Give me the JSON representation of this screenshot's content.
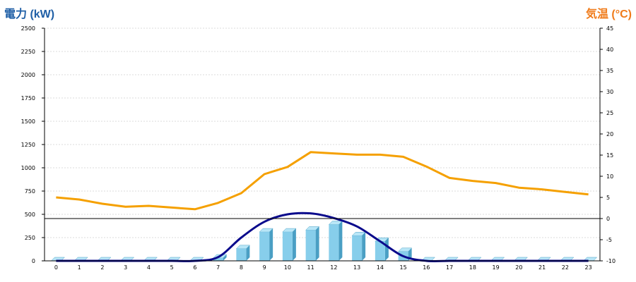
{
  "titles": {
    "left": "電力 (kW)",
    "right": "気温 (°C)"
  },
  "colors": {
    "left_title": "#1f5fa6",
    "right_title": "#f07b1a",
    "bar_front": "#87ceeb",
    "bar_top": "#b8e6f7",
    "bar_side": "#4a9fc4",
    "temperature_line": "#f5a000",
    "demand_curve": "#0a0a8c",
    "grid": "#cfcfcf"
  },
  "chart_data": {
    "type": "bar",
    "categories": [
      "0",
      "1",
      "2",
      "3",
      "4",
      "5",
      "6",
      "7",
      "8",
      "9",
      "10",
      "11",
      "12",
      "13",
      "14",
      "15",
      "16",
      "17",
      "18",
      "19",
      "20",
      "21",
      "22",
      "23"
    ],
    "ylim_left": [
      0,
      2500
    ],
    "yticks_left": [
      0,
      250,
      500,
      750,
      1000,
      1250,
      1500,
      1750,
      2000,
      2250,
      2500
    ],
    "ylim_right": [
      -10,
      45
    ],
    "yticks_right": [
      -10,
      -5,
      0,
      5,
      10,
      15,
      20,
      25,
      30,
      35,
      40,
      45
    ],
    "grid": true,
    "series": [
      {
        "type": "bar",
        "axis": "left",
        "values": [
          0,
          0,
          0,
          0,
          0,
          0,
          0,
          30,
          130,
          310,
          310,
          330,
          390,
          270,
          210,
          100,
          0,
          0,
          0,
          0,
          0,
          0,
          0,
          0
        ]
      },
      {
        "type": "line",
        "axis": "left",
        "values": [
          0,
          0,
          0,
          0,
          0,
          0,
          0,
          40,
          250,
          420,
          500,
          510,
          460,
          370,
          210,
          50,
          0,
          0,
          0,
          0,
          0,
          0,
          0,
          0
        ]
      },
      {
        "type": "line",
        "axis": "right",
        "values": [
          5.0,
          4.5,
          3.5,
          2.8,
          3.0,
          2.6,
          2.2,
          3.7,
          6.0,
          10.5,
          12.2,
          15.7,
          15.4,
          15.1,
          15.1,
          14.6,
          12.3,
          9.6,
          8.9,
          8.4,
          7.3,
          6.9,
          6.3,
          5.7
        ]
      }
    ]
  }
}
